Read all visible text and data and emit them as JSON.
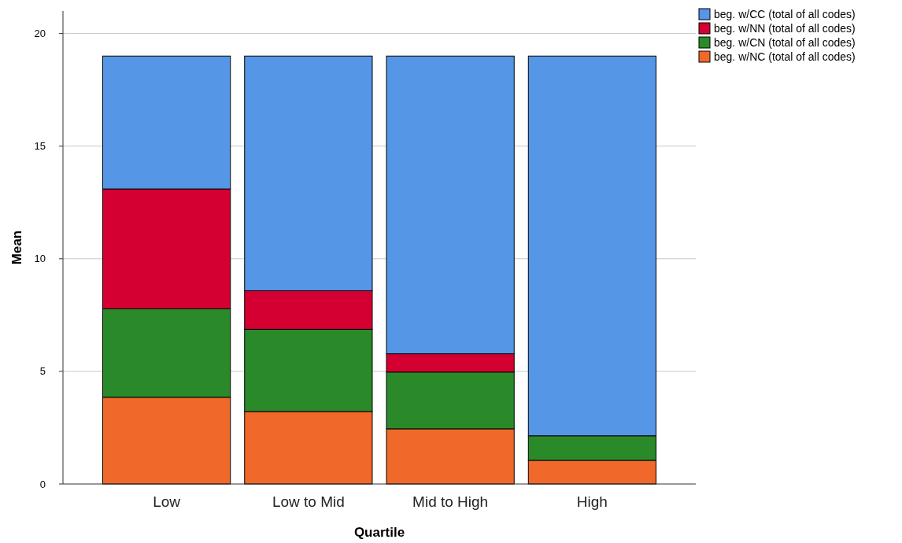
{
  "chart_data": {
    "type": "bar",
    "stacked": true,
    "xlabel": "Quartile",
    "ylabel": "Mean",
    "categories": [
      "Low",
      "Low to Mid",
      "Mid to High",
      "High"
    ],
    "series": [
      {
        "name": "beg. w/NC (total of all codes)",
        "color": "#f0692a",
        "values": [
          3.85,
          3.22,
          2.45,
          1.05
        ]
      },
      {
        "name": "beg. w/CN (total of all codes)",
        "color": "#2a8a2a",
        "values": [
          3.93,
          3.65,
          2.52,
          1.09
        ]
      },
      {
        "name": "beg. w/NN (total of all codes)",
        "color": "#d50032",
        "values": [
          5.32,
          1.71,
          0.81,
          0
        ]
      },
      {
        "name": "beg. w/CC (total of all codes)",
        "color": "#5596e6",
        "values": [
          5.9,
          10.42,
          13.22,
          16.86
        ]
      }
    ],
    "ylim": [
      0,
      21
    ],
    "yticks": [
      0,
      5,
      10,
      15,
      20
    ],
    "grid": "y",
    "legend": "top right"
  }
}
